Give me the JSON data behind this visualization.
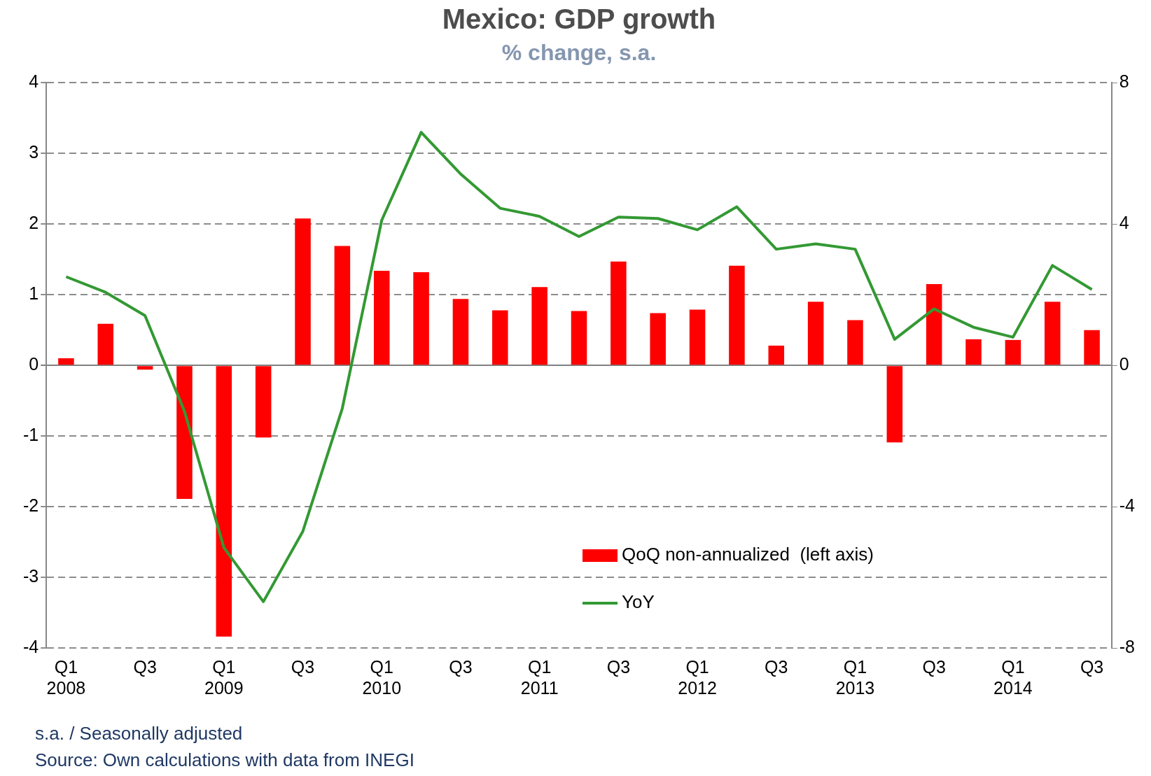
{
  "chart_data": {
    "type": "bar",
    "title": "Mexico: GDP growth",
    "subtitle": "% change, s.a.",
    "categories": [
      "Q1\n2008",
      null,
      "Q3",
      null,
      "Q1\n2009",
      null,
      "Q3",
      null,
      "Q1\n2010",
      null,
      "Q3",
      null,
      "Q1\n2011",
      null,
      "Q3",
      null,
      "Q1\n2012",
      null,
      "Q3",
      null,
      "Q1\n2013",
      null,
      "Q3",
      null,
      "Q1\n2014",
      null,
      "Q3"
    ],
    "series": [
      {
        "name": "QoQ non-annualized  (left axis)",
        "color": "#ff0000",
        "values": [
          0.1,
          0.59,
          -0.06,
          -1.89,
          -3.84,
          -1.02,
          2.08,
          1.69,
          1.34,
          1.32,
          0.94,
          0.78,
          1.11,
          0.77,
          1.47,
          0.74,
          0.79,
          1.41,
          0.28,
          0.9,
          0.64,
          -1.09,
          1.15,
          0.37,
          0.36,
          0.9,
          0.5
        ]
      },
      {
        "name": "YoY",
        "type": "line",
        "axis": "y2",
        "color": "#339933",
        "values": [
          2.51,
          2.07,
          1.41,
          -1.3,
          -5.16,
          -6.69,
          -4.7,
          -1.22,
          4.11,
          6.6,
          5.42,
          4.45,
          4.22,
          3.65,
          4.2,
          4.16,
          3.84,
          4.49,
          3.29,
          3.44,
          3.29,
          0.74,
          1.6,
          1.08,
          0.8,
          2.83,
          2.15
        ]
      }
    ],
    "ylim": [
      -4,
      4
    ],
    "yticks": [
      -4,
      -3,
      -2,
      -1,
      0,
      1,
      2,
      3,
      4
    ],
    "y2lim": [
      -8,
      8
    ],
    "y2ticks": [
      -8,
      -4,
      0,
      4,
      8
    ],
    "grid": "y",
    "legend": "bottom",
    "marker": "none",
    "line_style": "solid",
    "annotations": [
      "s.a. / Seasonally adjusted",
      "Source: Own calculations with data from INEGI"
    ]
  }
}
